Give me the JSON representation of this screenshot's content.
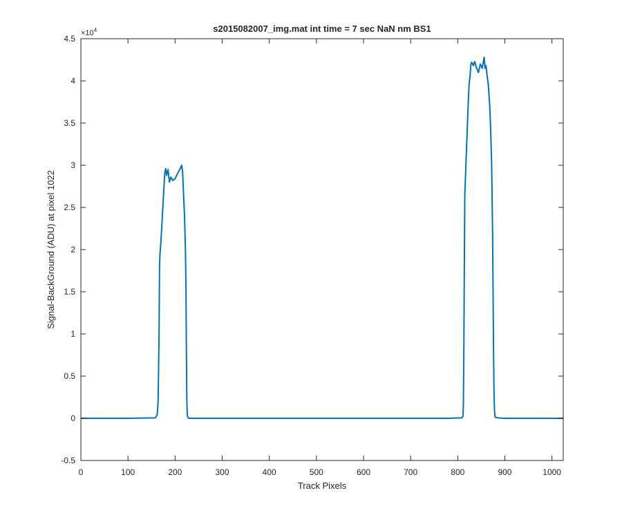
{
  "chart_data": {
    "type": "line",
    "title": "s2015082007_img.mat int time = 7 sec  NaN nm BS1",
    "xlabel": "Track Pixels",
    "ylabel": "Signal-BackGround (ADU) at pixel 1022",
    "exponent_label": "×10",
    "exponent_power": "4",
    "xlim": [
      0,
      1024
    ],
    "ylim": [
      -5000,
      45000
    ],
    "xticks": [
      0,
      100,
      200,
      300,
      400,
      500,
      600,
      700,
      800,
      900,
      1000
    ],
    "xtick_labels": [
      "0",
      "100",
      "200",
      "300",
      "400",
      "500",
      "600",
      "700",
      "800",
      "900",
      "1000"
    ],
    "yticks": [
      -5000,
      0,
      5000,
      10000,
      15000,
      20000,
      25000,
      30000,
      35000,
      40000,
      45000
    ],
    "ytick_labels": [
      "-0.5",
      "0",
      "0.5",
      "1",
      "1.5",
      "2",
      "2.5",
      "3",
      "3.5",
      "4",
      "4.5"
    ],
    "grid": false,
    "line_color": "#0072BD",
    "series": [
      {
        "x": [
          0,
          100,
          158,
          162,
          164,
          166,
          167,
          168,
          170,
          173,
          176,
          178,
          180,
          182,
          185,
          188,
          191,
          195,
          200,
          205,
          208,
          211,
          214,
          216,
          218,
          220,
          221,
          222,
          223,
          224,
          225,
          226,
          227,
          228,
          230,
          240,
          400,
          600,
          780,
          808,
          811,
          812,
          813,
          814,
          815,
          816,
          818,
          820,
          822,
          824,
          826,
          828,
          830,
          833,
          836,
          840,
          844,
          848,
          852,
          856,
          858,
          860,
          862,
          865,
          868,
          870,
          872,
          874,
          875,
          876,
          877,
          878,
          879,
          880,
          885,
          900,
          1024
        ],
        "y": [
          0,
          0,
          50,
          400,
          2000,
          10000,
          18000,
          19500,
          21000,
          24000,
          27000,
          29000,
          29600,
          28800,
          29500,
          28000,
          28600,
          28200,
          28400,
          29000,
          29300,
          29600,
          30000,
          29200,
          26500,
          24000,
          22000,
          20000,
          16000,
          8000,
          2000,
          400,
          100,
          50,
          0,
          0,
          0,
          0,
          0,
          50,
          200,
          1500,
          8000,
          18000,
          26500,
          28000,
          31000,
          34000,
          37000,
          39500,
          40500,
          42000,
          42200,
          41800,
          42300,
          41500,
          41000,
          42000,
          41500,
          42800,
          41500,
          41800,
          40800,
          39500,
          37000,
          34000,
          30000,
          22000,
          15000,
          8000,
          3000,
          1000,
          300,
          100,
          50,
          0,
          0
        ]
      }
    ]
  }
}
